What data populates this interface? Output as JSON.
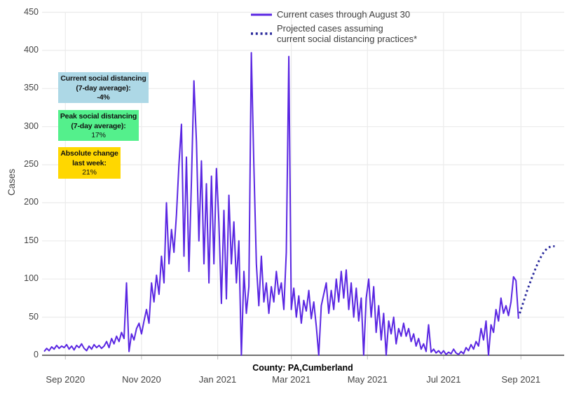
{
  "chart_data": {
    "type": "line",
    "title": "",
    "xlabel": "County: PA,Cumberland",
    "ylabel": "Cases",
    "ylim": [
      0,
      450
    ],
    "grid": true,
    "legend_position": "top-center-inside",
    "x_domain_start": "2020-08-15",
    "y_ticks": [
      0,
      50,
      100,
      150,
      200,
      250,
      300,
      350,
      400,
      450
    ],
    "x_ticks": [
      {
        "label": "Sep 2020",
        "date": "2020-09-01"
      },
      {
        "label": "Nov 2020",
        "date": "2020-11-01"
      },
      {
        "label": "Jan 2021",
        "date": "2021-01-01"
      },
      {
        "label": "Mar 2021",
        "date": "2021-03-01"
      },
      {
        "label": "May 2021",
        "date": "2021-05-01"
      },
      {
        "label": "Jul 2021",
        "date": "2021-07-01"
      },
      {
        "label": "Sep 2021",
        "date": "2021-09-01"
      }
    ],
    "series": [
      {
        "name": "Current cases through August 30",
        "style": "solid",
        "color": "#5A26E2",
        "start_date": "2020-08-15",
        "step_days": 2,
        "values": [
          5,
          9,
          6,
          11,
          8,
          13,
          9,
          12,
          10,
          14,
          8,
          12,
          7,
          13,
          10,
          15,
          9,
          6,
          12,
          8,
          14,
          10,
          13,
          9,
          12,
          18,
          10,
          22,
          15,
          25,
          18,
          30,
          22,
          95,
          5,
          28,
          20,
          35,
          42,
          28,
          45,
          60,
          42,
          95,
          70,
          105,
          80,
          130,
          95,
          200,
          120,
          165,
          135,
          185,
          250,
          303,
          130,
          260,
          110,
          230,
          360,
          280,
          150,
          255,
          120,
          225,
          95,
          235,
          120,
          245,
          175,
          68,
          190,
          74,
          210,
          120,
          175,
          95,
          150,
          0,
          110,
          55,
          90,
          397,
          250,
          120,
          65,
          130,
          70,
          95,
          55,
          90,
          70,
          110,
          80,
          95,
          60,
          135,
          392,
          60,
          88,
          50,
          78,
          42,
          72,
          58,
          85,
          48,
          70,
          38,
          0,
          65,
          80,
          95,
          55,
          85,
          60,
          100,
          70,
          110,
          75,
          112,
          60,
          95,
          50,
          88,
          45,
          75,
          0,
          75,
          100,
          50,
          90,
          30,
          65,
          20,
          55,
          0,
          45,
          28,
          50,
          15,
          35,
          25,
          42,
          25,
          35,
          18,
          28,
          12,
          22,
          8,
          15,
          5,
          40,
          4,
          8,
          3,
          6,
          2,
          6,
          1,
          4,
          2,
          8,
          3,
          1,
          5,
          2,
          10,
          6,
          14,
          8,
          18,
          12,
          35,
          20,
          45,
          0,
          40,
          30,
          60,
          45,
          75,
          55,
          65,
          52,
          70,
          103,
          98,
          48
        ]
      },
      {
        "name": "Projected cases assuming current social distancing practices*",
        "style": "dotted",
        "color": "#28289B",
        "start_date": "2021-08-31",
        "step_days": 2,
        "values": [
          55,
          65,
          75,
          85,
          94,
          103,
          111,
          119,
          126,
          132,
          137,
          140,
          142,
          143,
          143
        ]
      }
    ]
  },
  "axes": {
    "y_title": "Cases",
    "x_title": "County: PA,Cumberland"
  },
  "legend": {
    "item1_label": "Current cases through August 30",
    "item2_line1": "Projected cases assuming",
    "item2_line2": "current social distancing practices*"
  },
  "annotations": {
    "current": {
      "line1": "Current social distancing",
      "line2": "(7-day average):",
      "value": "-4%",
      "bg": "#ADD8E6"
    },
    "peak": {
      "line1": "Peak social distancing",
      "line2": "(7-day average):",
      "value": "17%",
      "bg": "#54F08C"
    },
    "change": {
      "line1": "Absolute change",
      "line2": "last week:",
      "value": "21%",
      "bg": "#FFD700"
    }
  }
}
